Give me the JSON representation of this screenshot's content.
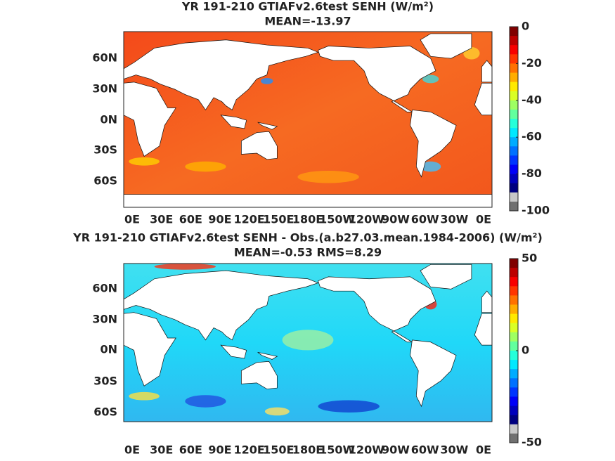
{
  "panels": [
    {
      "title": "YR 191-210 GTIAFv2.6test  SENH (W/m²)",
      "subtitle": "MEAN=-13.97",
      "lat_labels": [
        "60N",
        "30N",
        "0N",
        "30S",
        "60S"
      ],
      "lon_labels": [
        "0E",
        "30E",
        "60E",
        "90E",
        "120E",
        "150E",
        "180E",
        "150W",
        "120W",
        "90W",
        "60W",
        "30W",
        "0E"
      ],
      "colorbar": {
        "lim": [
          -100,
          0
        ],
        "ticks": [
          -100,
          -80,
          -60,
          -40,
          -20,
          0
        ]
      }
    },
    {
      "title": "YR 191-210 GTIAFv2.6test SENH - Obs.(a.b27.03.mean.1984-2006) (W/m²)",
      "subtitle": "MEAN=-0.53 RMS=8.29",
      "lat_labels": [
        "60N",
        "30N",
        "0N",
        "30S",
        "60S"
      ],
      "lon_labels": [
        "0E",
        "30E",
        "60E",
        "90E",
        "120E",
        "150E",
        "180E",
        "150W",
        "120W",
        "90W",
        "60W",
        "30W",
        "0E"
      ],
      "colorbar": {
        "lim": [
          -50,
          50
        ],
        "ticks": [
          -50,
          0,
          50
        ]
      }
    }
  ]
}
